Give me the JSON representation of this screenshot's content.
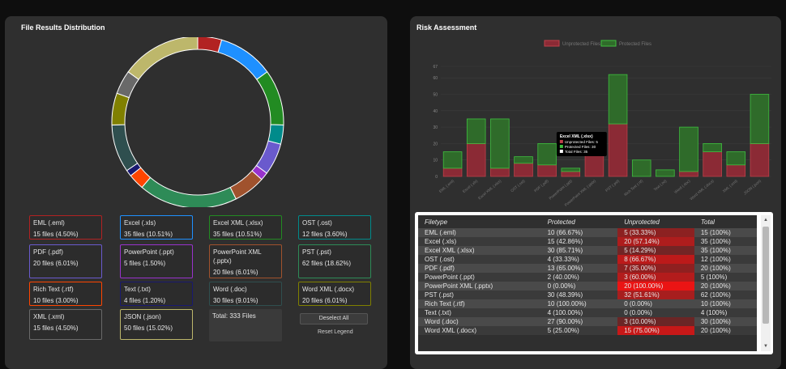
{
  "left": {
    "title": "File Results Distribution",
    "total_label": "Total: 333 Files",
    "deselect_label": "Deselect All",
    "reset_label": "Reset Legend"
  },
  "right": {
    "title": "Risk Assessment"
  },
  "legend": [
    {
      "name": "EML (.eml)",
      "count": "15 files (4.50%)",
      "color": "#b22222"
    },
    {
      "name": "Excel (.xls)",
      "count": "35 files (10.51%)",
      "color": "#1e90ff"
    },
    {
      "name": "Excel XML (.xlsx)",
      "count": "35 files (10.51%)",
      "color": "#228b22"
    },
    {
      "name": "OST (.ost)",
      "count": "12 files (3.60%)",
      "color": "#008b8b"
    },
    {
      "name": "PDF (.pdf)",
      "count": "20 files (6.01%)",
      "color": "#6a5acd"
    },
    {
      "name": "PowerPoint (.ppt)",
      "count": "5 files (1.50%)",
      "color": "#9932cc"
    },
    {
      "name": "PowerPoint XML (.pptx)",
      "count": "20 files (6.01%)",
      "color": "#a0522d"
    },
    {
      "name": "PST (.pst)",
      "count": "62 files (18.62%)",
      "color": "#2e8b57"
    },
    {
      "name": "Rich Text (.rtf)",
      "count": "10 files (3.00%)",
      "color": "#ff4500"
    },
    {
      "name": "Text (.txt)",
      "count": "4 files (1.20%)",
      "color": "#191970"
    },
    {
      "name": "Word (.doc)",
      "count": "30 files (9.01%)",
      "color": "#2f4f4f"
    },
    {
      "name": "Word XML (.docx)",
      "count": "20 files (6.01%)",
      "color": "#808000"
    },
    {
      "name": "XML (.xml)",
      "count": "15 files (4.50%)",
      "color": "#696969"
    },
    {
      "name": "JSON (.json)",
      "count": "50 files (15.02%)",
      "color": "#bdb76b"
    }
  ],
  "donut_values": [
    15,
    35,
    35,
    12,
    20,
    5,
    20,
    62,
    10,
    4,
    30,
    20,
    15,
    50
  ],
  "chart_data": {
    "type": "bar",
    "stacked": true,
    "legend": [
      "Unprotected Files",
      "Protected Files"
    ],
    "legend_placement": "top",
    "colors": {
      "unprotected": "#8b2a35",
      "protected": "#2f6b2a",
      "unprotected_border": "#c0404a",
      "protected_border": "#3fbf3f"
    },
    "categories": [
      "EML (.eml)",
      "Excel (.xls)",
      "Excel XML (.xlsx)",
      "OST (.ost)",
      "PDF (.pdf)",
      "PowerPoint (.ppt)",
      "PowerPoint XML (.pptx)",
      "PST (.pst)",
      "Rich Text (.rtf)",
      "Text (.txt)",
      "Word (.doc)",
      "Word XML (.docx)",
      "XML (.xml)",
      "JSON (.json)"
    ],
    "series": [
      {
        "name": "Unprotected Files",
        "values": [
          5,
          20,
          5,
          8,
          7,
          3,
          20,
          32,
          0,
          0,
          3,
          15,
          7,
          20
        ]
      },
      {
        "name": "Protected Files",
        "values": [
          10,
          15,
          30,
          4,
          13,
          2,
          0,
          30,
          10,
          4,
          27,
          5,
          8,
          30
        ]
      }
    ],
    "y_ticks": [
      "0",
      "10",
      "20",
      "30",
      "40",
      "50",
      "60",
      "67"
    ],
    "ylim": [
      0,
      67
    ],
    "grid": true,
    "tooltip": {
      "title": "Excel XML (.xlsx)",
      "lines": [
        "Unprotected Files: 5",
        "Protected Files: 30",
        "Total Files: 35"
      ]
    }
  },
  "table": {
    "headers": [
      "Filetype",
      "Protected",
      "Unprotected",
      "Total"
    ],
    "rows": [
      [
        "EML (.eml)",
        "10 (66.67%)",
        "5 (33.33%)",
        "15 (100%)"
      ],
      [
        "Excel (.xls)",
        "15 (42.86%)",
        "20 (57.14%)",
        "35 (100%)"
      ],
      [
        "Excel XML (.xlsx)",
        "30 (85.71%)",
        "5 (14.29%)",
        "35 (100%)"
      ],
      [
        "OST (.ost)",
        "4 (33.33%)",
        "8 (66.67%)",
        "12 (100%)"
      ],
      [
        "PDF (.pdf)",
        "13 (65.00%)",
        "7 (35.00%)",
        "20 (100%)"
      ],
      [
        "PowerPoint (.ppt)",
        "2 (40.00%)",
        "3 (60.00%)",
        "5 (100%)"
      ],
      [
        "PowerPoint XML (.pptx)",
        "0 (0.00%)",
        "20 (100.00%)",
        "20 (100%)"
      ],
      [
        "PST (.pst)",
        "30 (48.39%)",
        "32 (51.61%)",
        "62 (100%)"
      ],
      [
        "Rich Text (.rtf)",
        "10 (100.00%)",
        "0 (0.00%)",
        "10 (100%)"
      ],
      [
        "Text (.txt)",
        "4 (100.00%)",
        "0 (0.00%)",
        "4 (100%)"
      ],
      [
        "Word (.doc)",
        "27 (90.00%)",
        "3 (10.00%)",
        "30 (100%)"
      ],
      [
        "Word XML (.docx)",
        "5 (25.00%)",
        "15 (75.00%)",
        "20 (100%)"
      ]
    ],
    "unprotected_heat": [
      0.33,
      0.57,
      0.14,
      0.67,
      0.35,
      0.6,
      1.0,
      0.52,
      0,
      0,
      0.1,
      0.75
    ]
  }
}
